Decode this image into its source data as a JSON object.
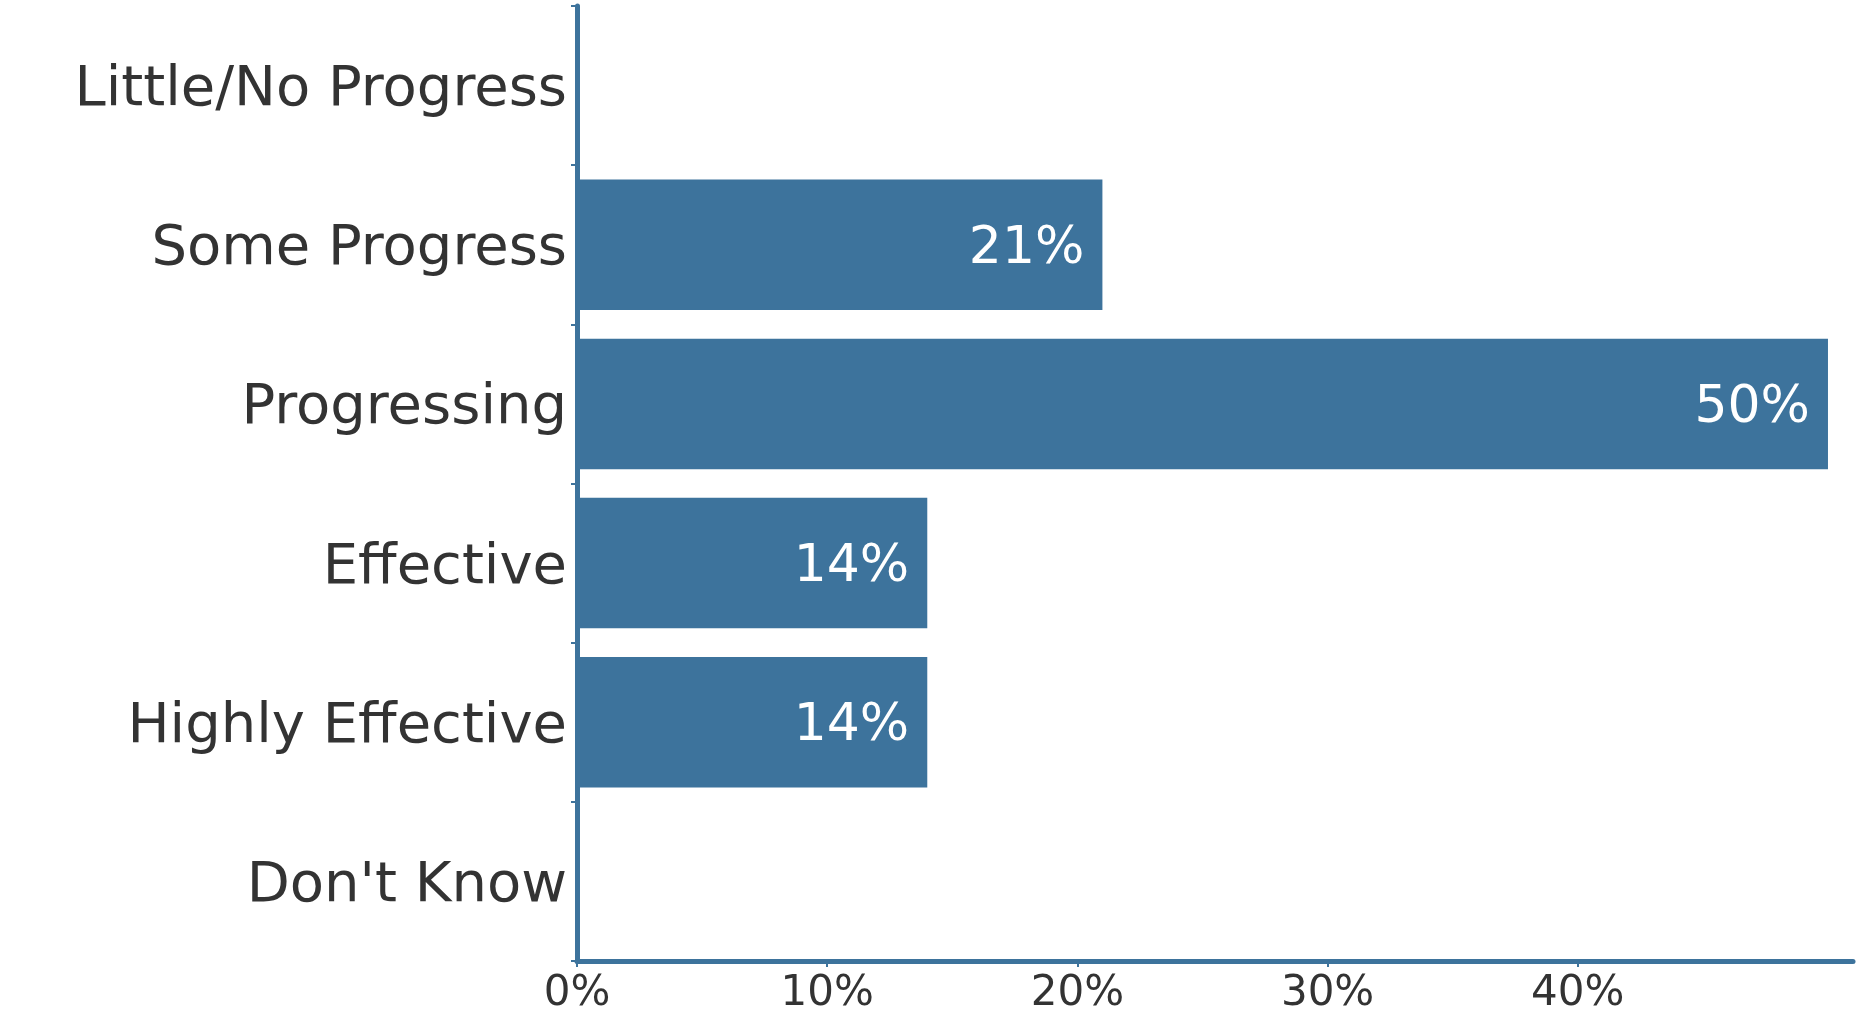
{
  "chart_data": {
    "type": "bar",
    "orientation": "horizontal",
    "categories": [
      "Little/No Progress",
      "Some Progress",
      "Progressing",
      "Effective",
      "Highly Effective",
      "Don't Know"
    ],
    "values": [
      0,
      21,
      50,
      14,
      14,
      0
    ],
    "value_labels": [
      null,
      "21%",
      "50%",
      "14%",
      "14%",
      null
    ],
    "color": "#3d739c",
    "xlim": [
      0,
      51
    ],
    "xticks": [
      {
        "value": 0,
        "label": "0%"
      },
      {
        "value": 10,
        "label": "10%"
      },
      {
        "value": 20,
        "label": "20%"
      },
      {
        "value": 30,
        "label": "30%"
      },
      {
        "value": 40,
        "label": "40%"
      }
    ],
    "grid": false
  }
}
